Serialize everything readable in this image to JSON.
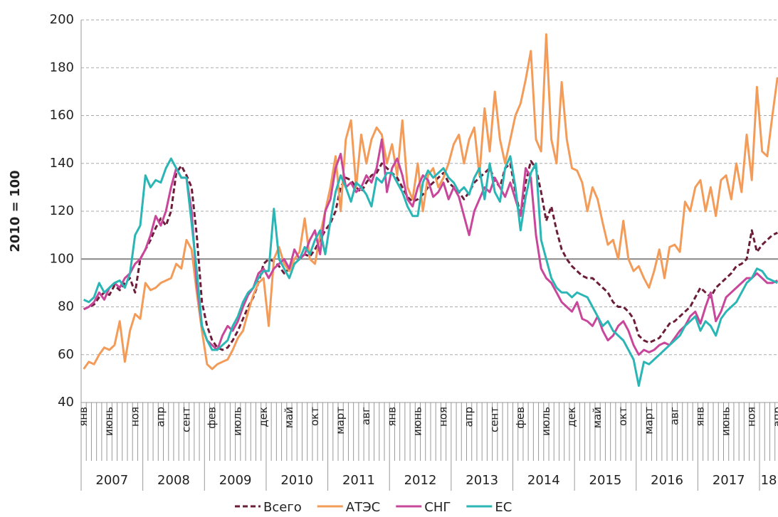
{
  "chart_data": {
    "type": "line",
    "ylabel": "2010 = 100",
    "ylim": [
      40,
      200
    ],
    "yticks": [
      40,
      60,
      80,
      100,
      120,
      140,
      160,
      180,
      200
    ],
    "grid": true,
    "hline": 100,
    "categories": [
      "янв",
      null,
      null,
      null,
      null,
      "июнь",
      null,
      null,
      null,
      null,
      "ноя",
      null,
      null,
      null,
      null,
      "апр",
      null,
      null,
      null,
      null,
      "сент",
      null,
      null,
      null,
      null,
      "фев",
      null,
      null,
      null,
      null,
      "июль",
      null,
      null,
      null,
      null,
      "дек",
      null,
      null,
      null,
      null,
      "май",
      null,
      null,
      null,
      null,
      "окт",
      null,
      null,
      null,
      null,
      "март",
      null,
      null,
      null,
      null,
      "авг",
      null,
      null,
      null,
      null,
      "янв",
      null,
      null,
      null,
      null,
      "июнь",
      null,
      null,
      null,
      null,
      "ноя",
      null,
      null,
      null,
      null,
      "апр",
      null,
      null,
      null,
      null,
      "сент",
      null,
      null,
      null,
      null,
      "фев",
      null,
      null,
      null,
      null,
      "июль",
      null,
      null,
      null,
      null,
      "дек",
      null,
      null,
      null,
      null,
      "май",
      null,
      null,
      null,
      null,
      "окт",
      null,
      null,
      null,
      null,
      "март",
      null,
      null,
      null,
      null,
      "авг",
      null,
      null,
      null,
      null,
      "янв",
      null,
      null,
      null,
      null,
      "июнь",
      null,
      null,
      null,
      null,
      "ноя",
      null,
      null,
      null,
      null,
      "апр"
    ],
    "years": [
      "2007",
      "2008",
      "2009",
      "2010",
      "2011",
      "2012",
      "2013",
      "2014",
      "2015",
      "2016",
      "2017",
      "18"
    ],
    "series": [
      {
        "name": "Всего",
        "color": "#6b1d3a",
        "dash": true,
        "values": [
          79,
          80,
          81,
          84,
          86,
          85,
          89,
          87,
          90,
          92,
          86,
          100,
          104,
          108,
          113,
          117,
          114,
          120,
          136,
          139,
          135,
          130,
          110,
          82,
          72,
          66,
          63,
          62,
          63,
          66,
          70,
          75,
          80,
          84,
          90,
          98,
          100,
          99,
          97,
          94,
          96,
          98,
          100,
          102,
          101,
          104,
          108,
          112,
          115,
          120,
          130,
          134,
          133,
          130,
          128,
          132,
          135,
          136,
          140,
          138,
          136,
          134,
          130,
          126,
          124,
          125,
          127,
          130,
          132,
          134,
          136,
          132,
          130,
          128,
          125,
          128,
          132,
          134,
          136,
          138,
          133,
          130,
          138,
          140,
          128,
          118,
          132,
          141,
          138,
          128,
          116,
          122,
          112,
          104,
          100,
          97,
          95,
          93,
          92,
          92,
          90,
          88,
          86,
          82,
          80,
          80,
          78,
          75,
          68,
          66,
          65,
          66,
          67,
          70,
          73,
          74,
          76,
          78,
          80,
          84,
          88,
          86,
          84,
          88,
          90,
          92,
          94,
          97,
          98,
          100,
          112,
          103,
          106,
          108,
          110,
          111
        ]
      },
      {
        "name": "АТЭС",
        "color": "#f39c5a",
        "values": [
          54,
          57,
          56,
          60,
          63,
          62,
          64,
          74,
          57,
          70,
          77,
          75,
          90,
          87,
          88,
          90,
          91,
          92,
          98,
          96,
          108,
          104,
          86,
          70,
          56,
          54,
          56,
          57,
          58,
          62,
          67,
          70,
          78,
          85,
          90,
          92,
          72,
          100,
          105,
          98,
          95,
          100,
          103,
          117,
          100,
          98,
          110,
          120,
          130,
          143,
          120,
          150,
          158,
          130,
          152,
          140,
          150,
          155,
          152,
          140,
          148,
          135,
          158,
          130,
          125,
          140,
          120,
          135,
          138,
          130,
          134,
          140,
          148,
          152,
          140,
          150,
          155,
          135,
          163,
          145,
          170,
          150,
          140,
          150,
          160,
          165,
          175,
          187,
          150,
          145,
          194,
          150,
          140,
          174,
          150,
          138,
          137,
          132,
          120,
          130,
          125,
          115,
          106,
          108,
          100,
          116,
          100,
          95,
          97,
          92,
          88,
          95,
          104,
          92,
          105,
          106,
          103,
          124,
          120,
          130,
          133,
          120,
          130,
          118,
          133,
          135,
          125,
          140,
          128,
          152,
          133,
          172,
          145,
          143,
          160,
          176
        ]
      },
      {
        "name": "СНГ",
        "color": "#c9479b",
        "values": [
          79,
          80,
          82,
          86,
          83,
          88,
          90,
          88,
          92,
          94,
          98,
          100,
          104,
          110,
          118,
          114,
          120,
          130,
          138,
          134,
          134,
          120,
          90,
          72,
          66,
          64,
          62,
          68,
          72,
          70,
          74,
          80,
          85,
          88,
          94,
          96,
          92,
          96,
          98,
          100,
          96,
          104,
          100,
          102,
          108,
          112,
          102,
          120,
          125,
          138,
          144,
          130,
          132,
          128,
          130,
          135,
          132,
          138,
          150,
          128,
          138,
          142,
          135,
          125,
          122,
          130,
          135,
          133,
          126,
          128,
          132,
          125,
          130,
          126,
          118,
          110,
          120,
          125,
          130,
          128,
          134,
          130,
          126,
          132,
          125,
          118,
          138,
          134,
          110,
          96,
          92,
          90,
          86,
          82,
          80,
          78,
          82,
          75,
          74,
          72,
          76,
          70,
          66,
          68,
          72,
          74,
          70,
          64,
          60,
          62,
          61,
          62,
          64,
          65,
          64,
          67,
          70,
          72,
          76,
          78,
          73,
          80,
          86,
          74,
          78,
          84,
          86,
          88,
          90,
          92,
          92,
          94,
          92,
          90,
          90,
          91
        ]
      },
      {
        "name": "ЕС",
        "color": "#2bb5b5",
        "values": [
          83,
          82,
          84,
          90,
          86,
          88,
          90,
          91,
          88,
          94,
          110,
          114,
          135,
          130,
          133,
          132,
          138,
          142,
          138,
          134,
          134,
          115,
          95,
          72,
          66,
          62,
          62,
          64,
          66,
          72,
          76,
          82,
          86,
          88,
          92,
          95,
          95,
          121,
          100,
          96,
          92,
          98,
          100,
          105,
          102,
          108,
          112,
          102,
          116,
          128,
          135,
          130,
          124,
          132,
          130,
          127,
          122,
          134,
          132,
          136,
          136,
          132,
          128,
          122,
          118,
          118,
          132,
          137,
          134,
          136,
          138,
          134,
          132,
          128,
          130,
          127,
          134,
          138,
          125,
          140,
          128,
          124,
          138,
          143,
          130,
          112,
          126,
          136,
          140,
          108,
          100,
          92,
          88,
          86,
          86,
          84,
          86,
          85,
          84,
          80,
          76,
          72,
          74,
          70,
          68,
          66,
          62,
          58,
          47,
          57,
          56,
          58,
          60,
          62,
          64,
          66,
          68,
          72,
          74,
          76,
          70,
          74,
          72,
          68,
          75,
          78,
          80,
          82,
          86,
          90,
          92,
          96,
          95,
          92,
          91,
          90
        ]
      }
    ]
  }
}
